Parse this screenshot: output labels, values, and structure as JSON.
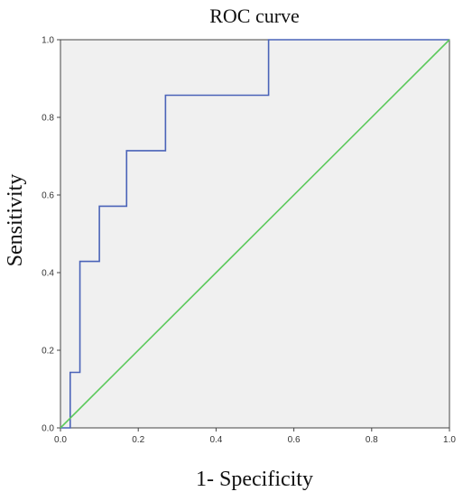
{
  "chart_data": {
    "type": "line",
    "title": "ROC curve",
    "xlabel": "1- Specificity",
    "ylabel": "Sensitivity",
    "xlim": [
      0,
      1
    ],
    "ylim": [
      0,
      1
    ],
    "grid": false,
    "x_ticks": [
      0.0,
      0.2,
      0.4,
      0.6,
      0.8,
      1.0
    ],
    "y_ticks": [
      0.0,
      0.2,
      0.4,
      0.6,
      0.8,
      1.0
    ],
    "x_tick_labels": [
      "0.0",
      "0.2",
      "0.4",
      "0.6",
      "0.8",
      "1.0"
    ],
    "y_tick_labels": [
      "0.0",
      "0.2",
      "0.4",
      "0.6",
      "0.8",
      "1.0"
    ],
    "background_color": "#f0f0f0",
    "series": [
      {
        "color": "#4a63b8",
        "step": true,
        "x": [
          0.0,
          0.025,
          0.025,
          0.05,
          0.05,
          0.1,
          0.1,
          0.17,
          0.17,
          0.27,
          0.27,
          0.535,
          0.535,
          1.0
        ],
        "y": [
          0.0,
          0.0,
          0.143,
          0.143,
          0.429,
          0.429,
          0.571,
          0.571,
          0.714,
          0.714,
          0.857,
          0.857,
          1.0,
          1.0
        ]
      },
      {
        "color": "#5cc95c",
        "step": false,
        "x": [
          0.0,
          1.0
        ],
        "y": [
          0.0,
          1.0
        ]
      }
    ]
  }
}
